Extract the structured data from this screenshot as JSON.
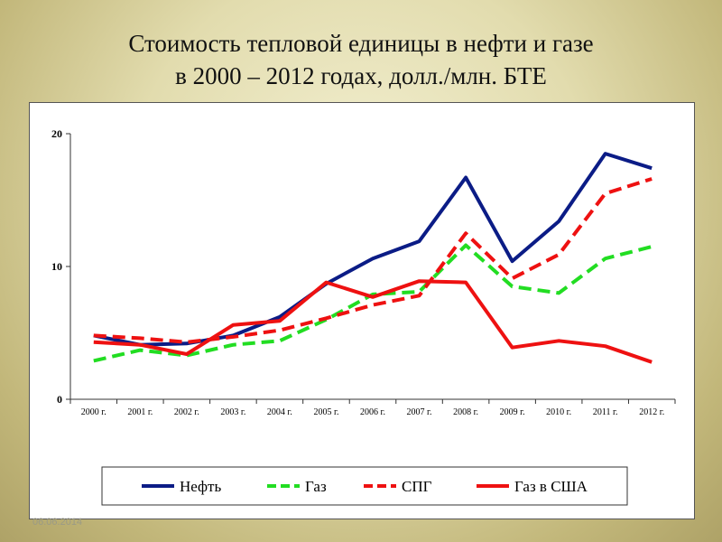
{
  "slide": {
    "title_line1": "Стоимость тепловой единицы в нефти и газе",
    "title_line2": "в 2000 – 2012 годах, долл./млн. БТЕ",
    "footer_date": "06.06.2014"
  },
  "chart_data": {
    "type": "line",
    "categories": [
      "2000 г.",
      "2001 г.",
      "2002 г.",
      "2003 г.",
      "2004 г.",
      "2005 г.",
      "2006 г.",
      "2007 г.",
      "2008 г.",
      "2009 г.",
      "2010 г.",
      "2011 г.",
      "2012 г."
    ],
    "yticks": [
      "0",
      "10",
      "20"
    ],
    "ylim": [
      0,
      20
    ],
    "series": [
      {
        "name": "Нефть",
        "color": "#0b1c86",
        "dash": "solid",
        "values": [
          4.8,
          4.1,
          4.2,
          4.8,
          6.2,
          8.7,
          10.6,
          11.9,
          16.7,
          10.4,
          13.4,
          18.5,
          17.4
        ]
      },
      {
        "name": "Газ",
        "color": "#22dd22",
        "dash": "dash",
        "values": [
          2.9,
          3.7,
          3.3,
          4.1,
          4.4,
          6.0,
          7.9,
          8.1,
          11.6,
          8.5,
          8.0,
          10.6,
          11.5
        ]
      },
      {
        "name": "СПГ",
        "color": "#ee1111",
        "dash": "dash",
        "values": [
          4.8,
          4.6,
          4.3,
          4.7,
          5.2,
          6.1,
          7.1,
          7.8,
          12.5,
          9.1,
          10.9,
          15.5,
          16.6
        ]
      },
      {
        "name": "Газ в США",
        "color": "#ee1111",
        "dash": "solid",
        "values": [
          4.3,
          4.1,
          3.4,
          5.6,
          5.9,
          8.8,
          7.7,
          8.9,
          8.8,
          3.9,
          4.4,
          4.0,
          2.8
        ]
      }
    ],
    "legend_position": "bottom",
    "grid": false
  }
}
